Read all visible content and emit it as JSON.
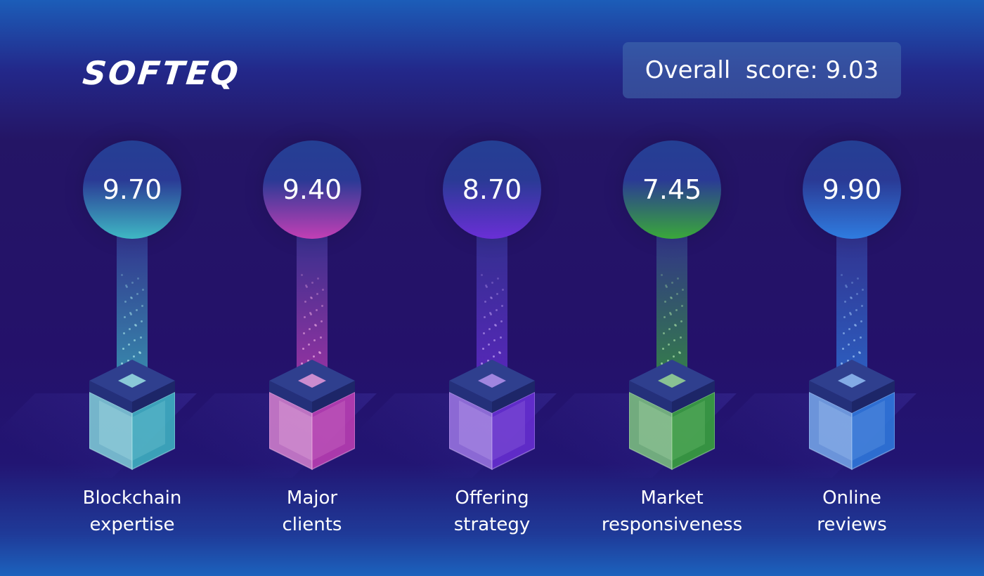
{
  "brand": {
    "logo_text": "SOFTEQ"
  },
  "overall": {
    "label": "Overall  score: 9.03"
  },
  "categories": [
    {
      "score": "9.70",
      "label_line1": "Blockchain",
      "label_line2": "expertise",
      "color": "#3fb8c4"
    },
    {
      "score": "9.40",
      "label_line1": "Major",
      "label_line2": "clients",
      "color": "#c23fb5"
    },
    {
      "score": "8.70",
      "label_line1": "Offering",
      "label_line2": "strategy",
      "color": "#6a2fd6"
    },
    {
      "score": "7.45",
      "label_line1": "Market",
      "label_line2": "responsiveness",
      "color": "#3aa83a"
    },
    {
      "score": "9.90",
      "label_line1": "Online",
      "label_line2": "reviews",
      "color": "#2f7ce0"
    }
  ]
}
